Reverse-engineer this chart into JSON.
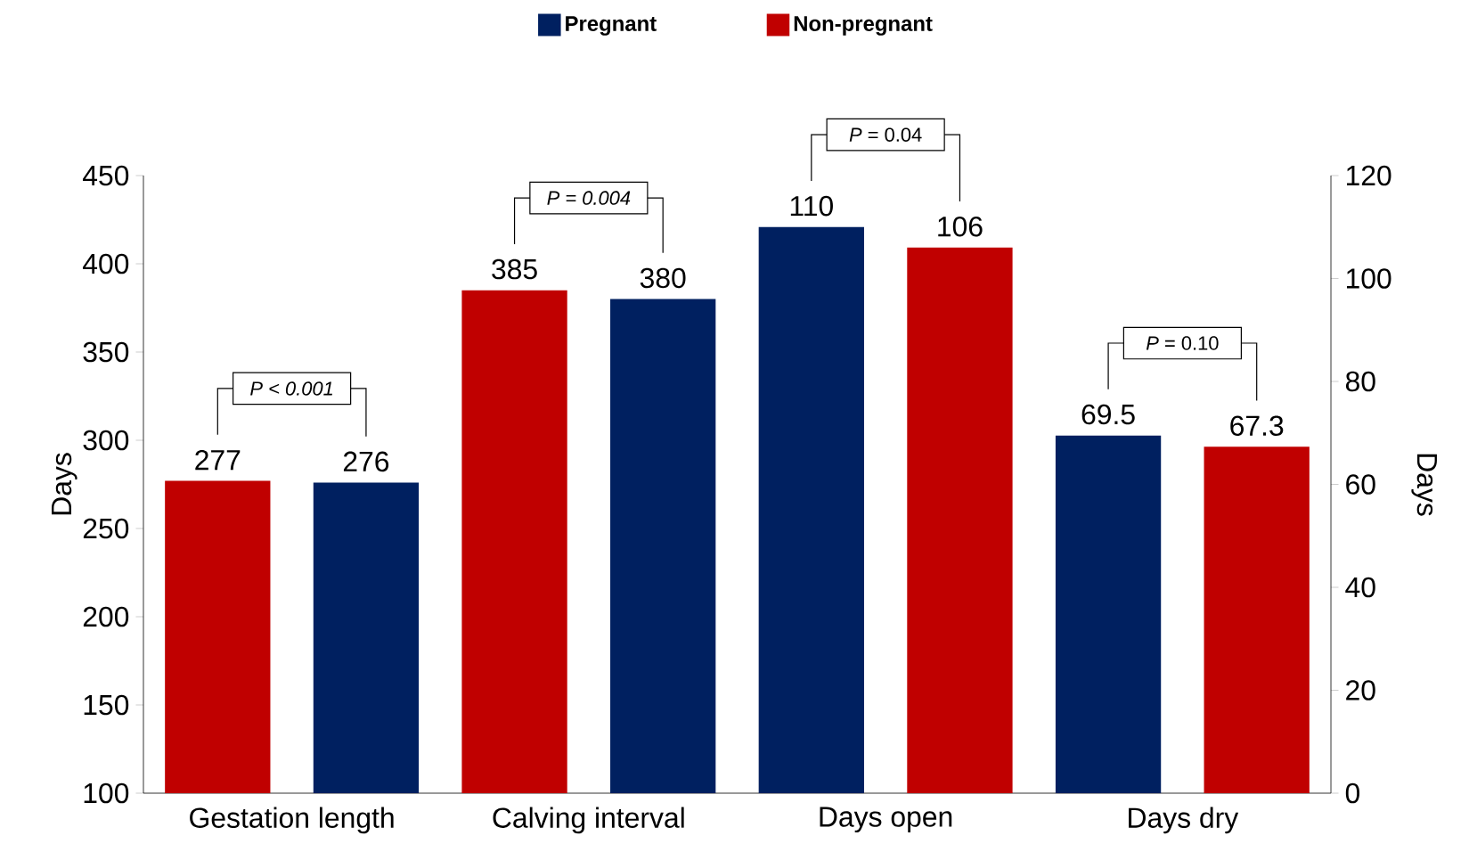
{
  "chart_data": {
    "type": "bar",
    "categories": [
      "Gestation length",
      "Calving interval",
      "Days open",
      "Days dry"
    ],
    "series": [
      {
        "name": "Pregnant",
        "color": "#002060",
        "axis": "y2",
        "values": [
          null,
          null,
          110,
          69.5
        ]
      },
      {
        "name": "Non-pregnant",
        "color": "#c00000",
        "axis": "y2",
        "values": [
          null,
          null,
          106,
          67.3
        ]
      },
      {
        "color": "#c00000",
        "values": [
          277,
          385,
          null,
          null
        ]
      },
      {
        "color": "#002060",
        "values": [
          276,
          380,
          null,
          null
        ]
      }
    ],
    "ylabel": "Days",
    "y2label": "Days",
    "ylim": [
      100,
      450
    ],
    "yticks": [
      100,
      150,
      200,
      250,
      300,
      350,
      400,
      450
    ],
    "y2lim": [
      0,
      120
    ],
    "y2ticks": [
      0,
      20,
      40,
      60,
      80,
      100,
      120
    ],
    "legend": "top",
    "data_labels": true,
    "annotations": [
      "*P < 0.001*",
      "*P = 0.004*",
      "*P* = 0.04",
      "*P* = 0.10"
    ]
  }
}
